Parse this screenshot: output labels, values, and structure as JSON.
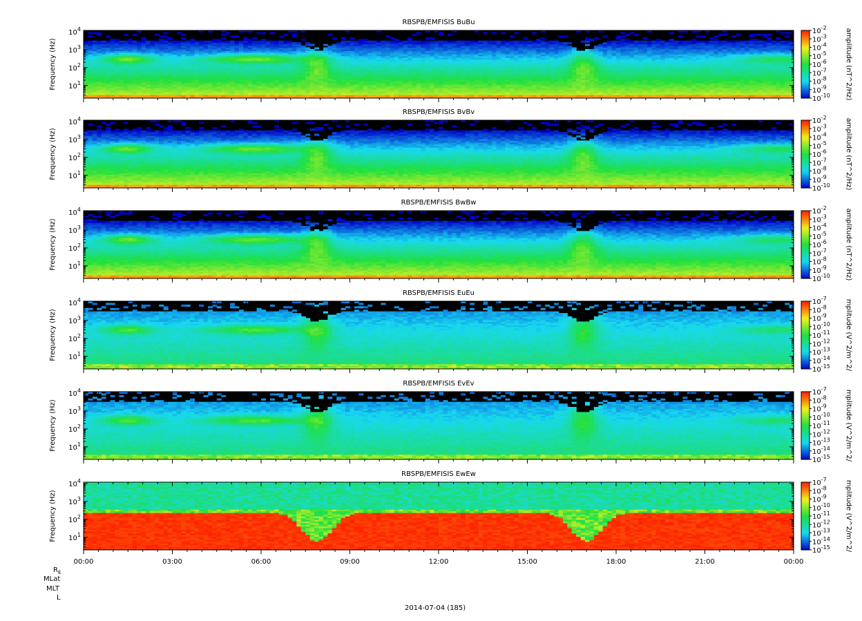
{
  "colors": {
    "black": "#000000",
    "blue": "#0000c8",
    "cyan": "#18d8f0",
    "green": "#20e040",
    "yellow": "#f0f020",
    "red": "#ff2000"
  },
  "chart_data": [
    {
      "type": "heatmap",
      "title": "RBSPB/EMFISIS  BuBu",
      "ylabel": "Frequency (Hz)",
      "yscale": "log",
      "ylim": [
        2,
        12000
      ],
      "yticks": [
        "10^4",
        "10^3",
        "10^2",
        "10^1"
      ],
      "colorbar_label": "amplitude (nT^2/Hz)",
      "colorbar_ticks": [
        "10^-2",
        "10^-3",
        "10^-4",
        "10^-5",
        "10^-6",
        "10^-7",
        "10^-8",
        "10^-9",
        "10^-10"
      ],
      "colorbar_range": [
        -10,
        -2
      ],
      "style": "b"
    },
    {
      "type": "heatmap",
      "title": "RBSPB/EMFISIS  BvBv",
      "ylabel": "Frequency (Hz)",
      "yscale": "log",
      "ylim": [
        2,
        12000
      ],
      "yticks": [
        "10^4",
        "10^3",
        "10^2",
        "10^1"
      ],
      "colorbar_label": "amplitude (nT^2/Hz)",
      "colorbar_ticks": [
        "10^-2",
        "10^-3",
        "10^-4",
        "10^-5",
        "10^-6",
        "10^-7",
        "10^-8",
        "10^-9",
        "10^-10"
      ],
      "colorbar_range": [
        -10,
        -2
      ],
      "style": "b"
    },
    {
      "type": "heatmap",
      "title": "RBSPB/EMFISIS  BwBw",
      "ylabel": "Frequency (Hz)",
      "yscale": "log",
      "ylim": [
        2,
        12000
      ],
      "yticks": [
        "10^4",
        "10^3",
        "10^2",
        "10^1"
      ],
      "colorbar_label": "amplitude (nT^2/Hz)",
      "colorbar_ticks": [
        "10^-2",
        "10^-3",
        "10^-4",
        "10^-5",
        "10^-6",
        "10^-7",
        "10^-8",
        "10^-9",
        "10^-10"
      ],
      "colorbar_range": [
        -10,
        -2
      ],
      "style": "b"
    },
    {
      "type": "heatmap",
      "title": "RBSPB/EMFISIS  EuEu",
      "ylabel": "Frequency (Hz)",
      "yscale": "log",
      "ylim": [
        2,
        12000
      ],
      "yticks": [
        "10^4",
        "10^3",
        "10^2",
        "10^1"
      ],
      "colorbar_label": "mplitude (V^2/m^2/",
      "colorbar_ticks": [
        "10^-7",
        "10^-8",
        "10^-9",
        "10^-10",
        "10^-11",
        "10^-12",
        "10^-13",
        "10^-14",
        "10^-15"
      ],
      "colorbar_range": [
        -15,
        -7
      ],
      "style": "e"
    },
    {
      "type": "heatmap",
      "title": "RBSPB/EMFISIS  EvEv",
      "ylabel": "Frequency (Hz)",
      "yscale": "log",
      "ylim": [
        2,
        12000
      ],
      "yticks": [
        "10^4",
        "10^3",
        "10^2",
        "10^1"
      ],
      "colorbar_label": "mplitude (V^2/m^2/",
      "colorbar_ticks": [
        "10^-7",
        "10^-8",
        "10^-9",
        "10^-10",
        "10^-11",
        "10^-12",
        "10^-13",
        "10^-14",
        "10^-15"
      ],
      "colorbar_range": [
        -15,
        -7
      ],
      "style": "e"
    },
    {
      "type": "heatmap",
      "title": "RBSPB/EMFISIS  EwEw",
      "ylabel": "Frequency (Hz)",
      "yscale": "log",
      "ylim": [
        2,
        12000
      ],
      "yticks": [
        "10^4",
        "10^3",
        "10^2",
        "10^1"
      ],
      "colorbar_label": "mplitude (V^2/m^2/",
      "colorbar_ticks": [
        "10^-7",
        "10^-8",
        "10^-9",
        "10^-10",
        "10^-11",
        "10^-12",
        "10^-13",
        "10^-14",
        "10^-15"
      ],
      "colorbar_range": [
        -15,
        -7
      ],
      "style": "w"
    }
  ],
  "x_axis": {
    "tick_labels": [
      "00:00",
      "03:00",
      "06:00",
      "09:00",
      "12:00",
      "15:00",
      "18:00",
      "21:00",
      "00:00"
    ],
    "range_hours": [
      0,
      24
    ]
  },
  "ephemeris_labels": [
    "R_E",
    "MLat",
    "MLT",
    "L"
  ],
  "date_label": "2014-07-04 (185)"
}
